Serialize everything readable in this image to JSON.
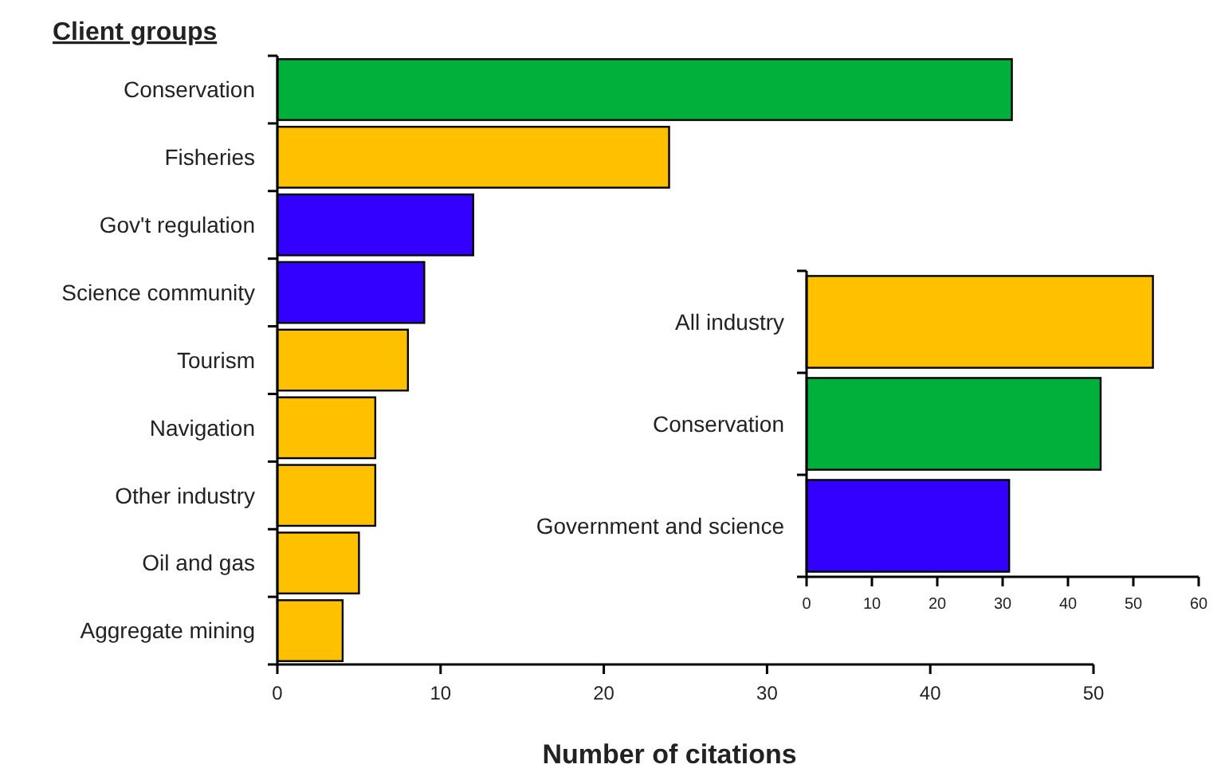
{
  "chart_data": [
    {
      "type": "bar",
      "orientation": "horizontal",
      "title": "Client groups",
      "xlabel": "Number of citations",
      "categories": [
        "Conservation",
        "Fisheries",
        "Gov't regulation",
        "Science community",
        "Tourism",
        "Navigation",
        "Other industry",
        "Oil and gas",
        "Aggregate mining"
      ],
      "values": [
        45,
        24,
        12,
        9,
        8,
        6,
        6,
        5,
        4
      ],
      "colors": [
        "#00b03a",
        "#ffc000",
        "#3300ff",
        "#3300ff",
        "#ffc000",
        "#ffc000",
        "#ffc000",
        "#ffc000",
        "#ffc000"
      ],
      "xlim": [
        0,
        50
      ],
      "xticks": [
        0,
        10,
        20,
        30,
        40,
        50
      ],
      "grid": false
    },
    {
      "type": "bar",
      "orientation": "horizontal",
      "categories": [
        "All industry",
        "Conservation",
        "Government and science"
      ],
      "values": [
        53,
        45,
        31
      ],
      "colors": [
        "#ffc000",
        "#00b03a",
        "#3300ff"
      ],
      "xlim": [
        0,
        60
      ],
      "xticks": [
        0,
        10,
        20,
        30,
        40,
        50,
        60
      ],
      "grid": false
    }
  ]
}
